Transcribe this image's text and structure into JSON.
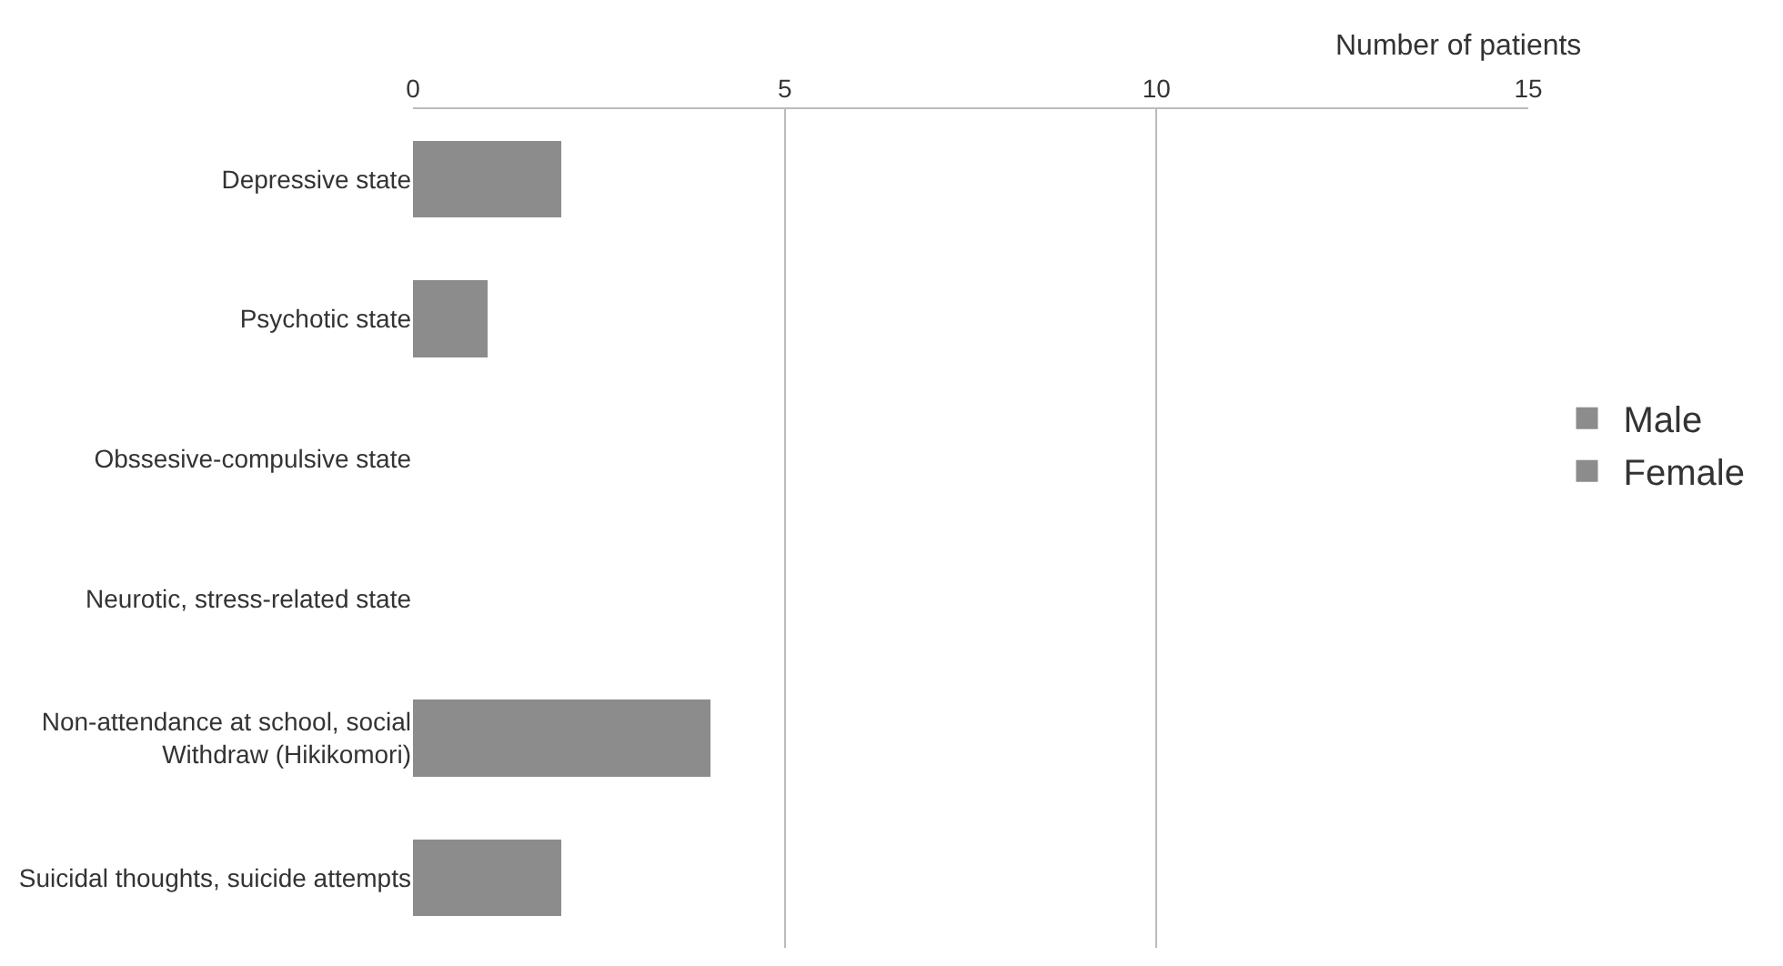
{
  "chart_data": {
    "type": "bar",
    "orientation": "horizontal",
    "stacked": true,
    "xlabel": "Number of patients",
    "categories": [
      "Depressive state",
      "Psychotic state",
      "Obssesive-compulsive state",
      "Neurotic, stress-related state",
      "Non-attendance at school, social Withdraw (Hikikomori)",
      "Suicidal thoughts, suicide attempts"
    ],
    "series": [
      {
        "name": "Male",
        "color": "#8c8c8c",
        "values": [
          2,
          1,
          0,
          0,
          4,
          2
        ]
      },
      {
        "name": "Female",
        "color": "#8c8c8c",
        "values": [
          null,
          null,
          null,
          null,
          null,
          null
        ]
      }
    ],
    "xlim": [
      0,
      15
    ],
    "xticks": [
      0,
      5,
      10,
      15
    ],
    "grid": "x",
    "legend": "right"
  }
}
